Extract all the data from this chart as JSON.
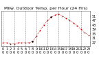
{
  "title": "Milw. Outdoor Temp. per Hour (24 Hrs)",
  "hours": [
    0,
    1,
    2,
    3,
    4,
    5,
    6,
    7,
    8,
    9,
    10,
    11,
    12,
    13,
    14,
    15,
    16,
    17,
    18,
    19,
    20,
    21,
    22,
    23
  ],
  "temps": [
    27,
    27,
    26,
    26,
    27,
    27,
    27,
    27,
    28,
    33,
    38,
    43,
    47,
    50,
    52,
    53,
    51,
    49,
    47,
    45,
    42,
    39,
    36,
    34
  ],
  "line_color": "#cc0000",
  "marker_color": "#cc0000",
  "black_marker_indices": [
    8,
    13
  ],
  "bg_color": "#ffffff",
  "grid_color": "#888888",
  "yticks": [
    27,
    31,
    35,
    39,
    43,
    47,
    51
  ],
  "ylim": [
    24,
    56
  ],
  "xlim": [
    -0.5,
    23.5
  ],
  "title_fontsize": 4.5,
  "tick_fontsize": 3.5,
  "vgrid_positions": [
    0,
    3,
    6,
    9,
    12,
    15,
    18,
    21
  ]
}
